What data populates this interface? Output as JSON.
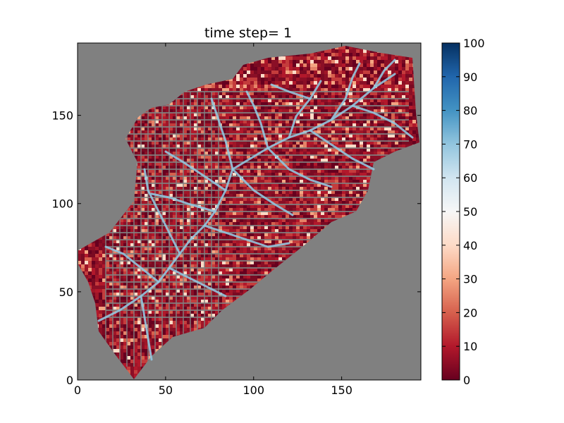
{
  "chart_data": {
    "type": "heatmap",
    "title": "time step= 1",
    "xlabel": "",
    "ylabel": "",
    "xlim": [
      0,
      195
    ],
    "ylim": [
      0,
      191
    ],
    "x_ticks": [
      0,
      50,
      100,
      150
    ],
    "y_ticks": [
      0,
      50,
      100,
      150
    ],
    "colorbar": {
      "range": [
        0,
        100
      ],
      "ticks": [
        0,
        10,
        20,
        30,
        40,
        50,
        60,
        70,
        80,
        90,
        100
      ],
      "colormap": "RdBu",
      "colors": [
        "#67001f",
        "#b2182b",
        "#d6604d",
        "#f4a582",
        "#fddbc7",
        "#f7f7f7",
        "#d1e5f0",
        "#92c5de",
        "#4393c3",
        "#2166ac",
        "#053061"
      ]
    },
    "background_color": "#808080",
    "grid": false
  }
}
